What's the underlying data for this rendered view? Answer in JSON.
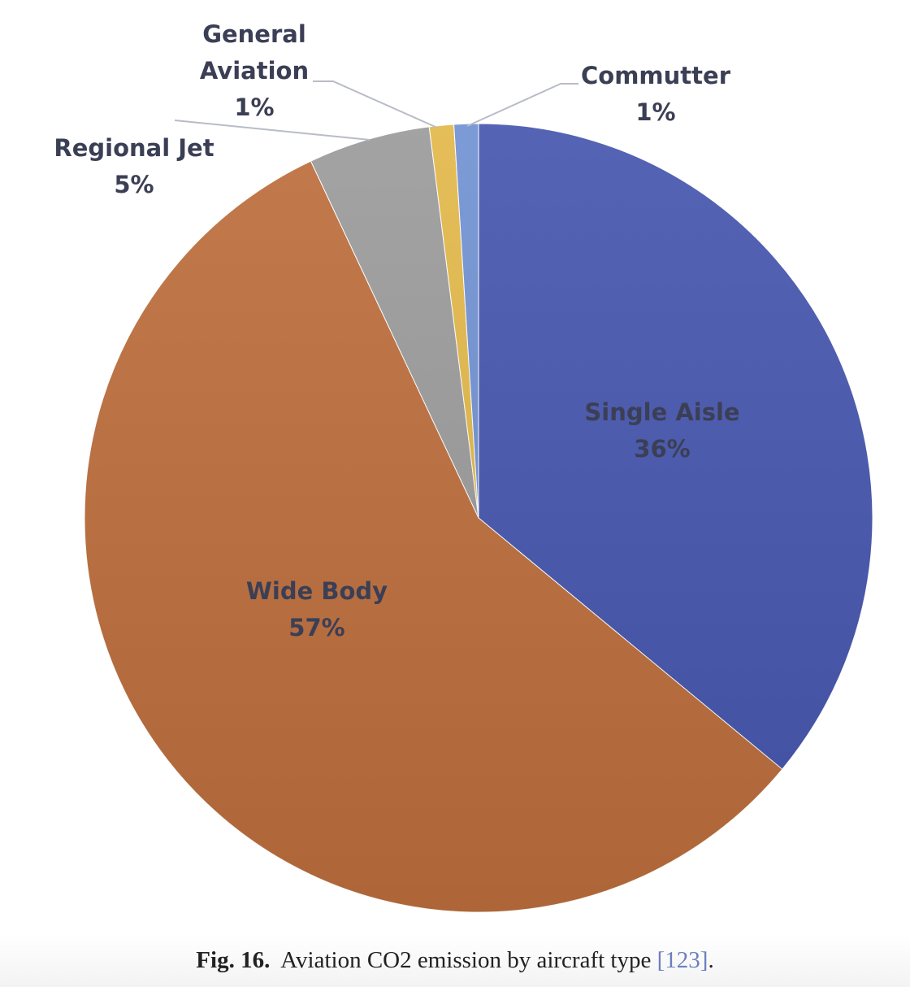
{
  "chart_data": {
    "type": "pie",
    "categories": [
      "Single Aisle",
      "Wide Body",
      "Regional Jet",
      "General Aviation",
      "Commutter"
    ],
    "values": [
      36,
      57,
      5,
      1,
      1
    ],
    "value_labels": [
      "36%",
      "57%",
      "5%",
      "1%",
      "1%"
    ],
    "colors": [
      "#4656ae",
      "#bd6e3c",
      "#9b9b9b",
      "#e2b84a",
      "#7192d2"
    ]
  },
  "caption": {
    "label": "Fig. 16.",
    "text": "Aviation CO2 emission by aircraft type",
    "ref": "[123]",
    "end": "."
  }
}
